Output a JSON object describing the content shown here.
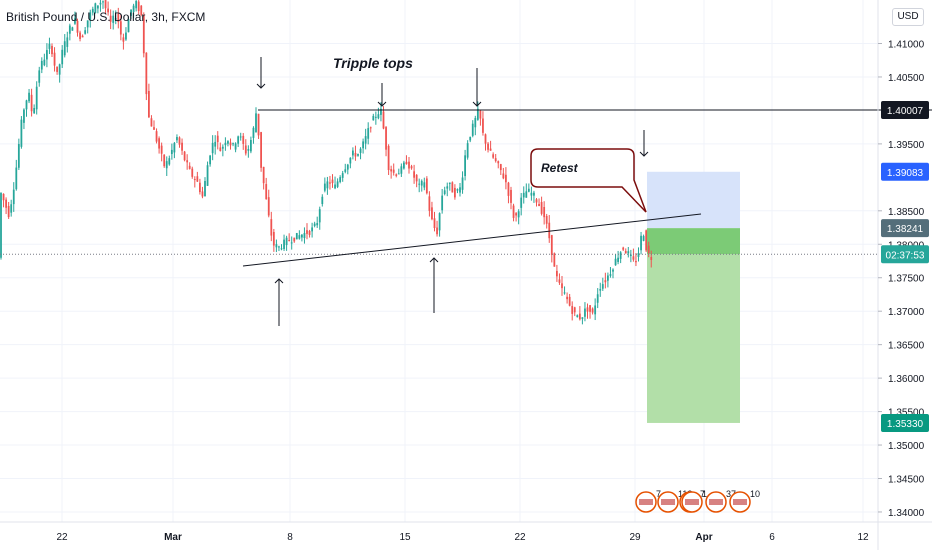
{
  "title": "British Pound / U.S. Dollar, 3h, FXCM",
  "currency": "USD",
  "annotations": {
    "tripple_tops": "Tripple tops",
    "retest": "Retest"
  },
  "price_axis": {
    "ticks": [
      "1.41000",
      "1.40500",
      "1.39500",
      "1.38500",
      "1.38000",
      "1.37500",
      "1.37000",
      "1.36500",
      "1.36000",
      "1.35500",
      "1.35000",
      "1.34500",
      "1.34000"
    ],
    "tick_values": [
      1.41,
      1.405,
      1.395,
      1.385,
      1.38,
      1.375,
      1.37,
      1.365,
      1.36,
      1.355,
      1.35,
      1.345,
      1.34
    ],
    "range": [
      1.3385,
      1.4165
    ]
  },
  "time_axis": {
    "labels": [
      "22",
      "Mar",
      "8",
      "15",
      "22",
      "29",
      "Apr",
      "6",
      "12"
    ]
  },
  "badges": [
    {
      "text": "1.40007",
      "value": 1.40007,
      "bg": "#131722",
      "fg": "#ffffff"
    },
    {
      "text": "1.39083",
      "value": 1.39083,
      "bg": "#2962ff",
      "fg": "#ffffff"
    },
    {
      "text": "1.38241",
      "value": 1.38241,
      "bg": "#546e7a",
      "fg": "#ffffff"
    },
    {
      "text": "02:37:53",
      "value": 1.3785,
      "bg": "#26a69a",
      "fg": "#ffffff"
    },
    {
      "text": "1.35330",
      "value": 1.3533,
      "bg": "#089981",
      "fg": "#ffffff"
    }
  ],
  "colors": {
    "up": "#26a69a",
    "down": "#ef5350",
    "profit_zone": "#b2dfa8",
    "profit_zone_strong": "#7ccb76",
    "stop_zone": "#d7e3fa",
    "retest_border": "#7b0d0d"
  },
  "events": {
    "counts": [
      "7",
      "113",
      "7",
      "1",
      "37",
      "10"
    ]
  },
  "chart_data": {
    "type": "candlestick",
    "timeframe": "3h",
    "symbol": "GBP/USD",
    "ylim": [
      1.3385,
      1.4165
    ],
    "resistance_level": 1.40007,
    "position": {
      "entry": 1.38241,
      "stop": 1.39083,
      "target": 1.3533
    },
    "path_points": [
      [
        0,
        1.3885
      ],
      [
        5,
        1.3865
      ],
      [
        10,
        1.3845
      ],
      [
        14,
        1.3875
      ],
      [
        18,
        1.392
      ],
      [
        22,
        1.3975
      ],
      [
        26,
        1.401
      ],
      [
        30,
        1.4025
      ],
      [
        34,
        1.399
      ],
      [
        40,
        1.406
      ],
      [
        46,
        1.408
      ],
      [
        52,
        1.41
      ],
      [
        58,
        1.405
      ],
      [
        64,
        1.409
      ],
      [
        70,
        1.412
      ],
      [
        76,
        1.4135
      ],
      [
        82,
        1.4105
      ],
      [
        90,
        1.414
      ],
      [
        96,
        1.4155
      ],
      [
        104,
        1.4165
      ],
      [
        112,
        1.413
      ],
      [
        118,
        1.4145
      ],
      [
        124,
        1.41
      ],
      [
        132,
        1.415
      ],
      [
        138,
        1.416
      ],
      [
        143,
        1.414
      ],
      [
        147,
        1.404
      ],
      [
        150,
        1.399
      ],
      [
        155,
        1.397
      ],
      [
        160,
        1.3945
      ],
      [
        166,
        1.3915
      ],
      [
        172,
        1.3935
      ],
      [
        178,
        1.396
      ],
      [
        185,
        1.393
      ],
      [
        192,
        1.3905
      ],
      [
        198,
        1.3895
      ],
      [
        204,
        1.387
      ],
      [
        210,
        1.393
      ],
      [
        216,
        1.396
      ],
      [
        222,
        1.394
      ],
      [
        228,
        1.396
      ],
      [
        234,
        1.3945
      ],
      [
        240,
        1.3965
      ],
      [
        248,
        1.3935
      ],
      [
        254,
        1.3965
      ],
      [
        258,
        1.4003
      ],
      [
        262,
        1.392
      ],
      [
        266,
        1.388
      ],
      [
        270,
        1.384
      ],
      [
        274,
        1.38
      ],
      [
        280,
        1.3795
      ],
      [
        288,
        1.3805
      ],
      [
        296,
        1.381
      ],
      [
        304,
        1.3815
      ],
      [
        312,
        1.382
      ],
      [
        318,
        1.383
      ],
      [
        324,
        1.388
      ],
      [
        330,
        1.3895
      ],
      [
        336,
        1.3885
      ],
      [
        342,
        1.3905
      ],
      [
        348,
        1.392
      ],
      [
        354,
        1.3935
      ],
      [
        360,
        1.3935
      ],
      [
        366,
        1.3955
      ],
      [
        372,
        1.398
      ],
      [
        378,
        1.3995
      ],
      [
        382,
        1.4001
      ],
      [
        386,
        1.396
      ],
      [
        390,
        1.3915
      ],
      [
        396,
        1.3905
      ],
      [
        402,
        1.391
      ],
      [
        408,
        1.3925
      ],
      [
        414,
        1.3905
      ],
      [
        420,
        1.3885
      ],
      [
        426,
        1.3895
      ],
      [
        432,
        1.384
      ],
      [
        438,
        1.3815
      ],
      [
        444,
        1.388
      ],
      [
        450,
        1.389
      ],
      [
        456,
        1.3875
      ],
      [
        462,
        1.3885
      ],
      [
        468,
        1.395
      ],
      [
        474,
        1.3975
      ],
      [
        480,
        1.4001
      ],
      [
        484,
        1.3965
      ],
      [
        490,
        1.394
      ],
      [
        496,
        1.3925
      ],
      [
        502,
        1.391
      ],
      [
        508,
        1.389
      ],
      [
        512,
        1.386
      ],
      [
        516,
        1.3835
      ],
      [
        522,
        1.3865
      ],
      [
        528,
        1.388
      ],
      [
        534,
        1.3875
      ],
      [
        540,
        1.386
      ],
      [
        546,
        1.384
      ],
      [
        552,
        1.38
      ],
      [
        556,
        1.376
      ],
      [
        560,
        1.374
      ],
      [
        566,
        1.3725
      ],
      [
        572,
        1.3705
      ],
      [
        576,
        1.3695
      ],
      [
        582,
        1.369
      ],
      [
        588,
        1.3705
      ],
      [
        594,
        1.3695
      ],
      [
        600,
        1.3735
      ],
      [
        606,
        1.3745
      ],
      [
        612,
        1.376
      ],
      [
        618,
        1.378
      ],
      [
        624,
        1.3795
      ],
      [
        630,
        1.3785
      ],
      [
        636,
        1.377
      ],
      [
        640,
        1.379
      ],
      [
        644,
        1.3824
      ],
      [
        648,
        1.379
      ],
      [
        652,
        1.378
      ]
    ]
  }
}
